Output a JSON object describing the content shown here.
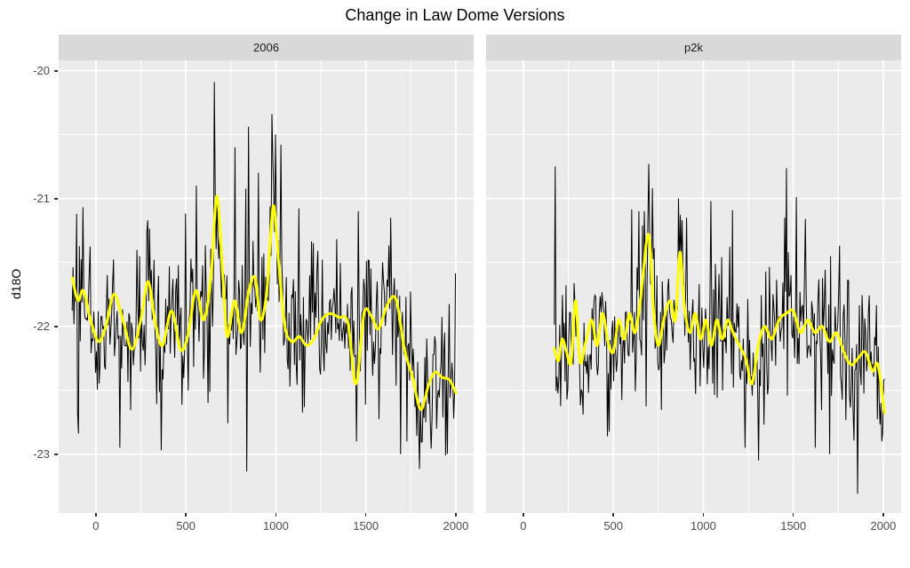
{
  "chart_data": {
    "type": "line",
    "title": "Change in Law Dome Versions",
    "ylabel": "d18O",
    "xlabel": "",
    "legend": "none",
    "grid": true,
    "facet_labels": [
      "2006",
      "p2k"
    ],
    "x_ticks": [
      0,
      500,
      1000,
      1500,
      2000
    ],
    "y_ticks": [
      -20,
      -21,
      -22,
      -23
    ],
    "xlim": [
      -207,
      2099
    ],
    "ylim": [
      -23.46,
      -19.92
    ],
    "colors": {
      "panel_bg": "#EBEBEB",
      "strip_bg": "#D9D9D9",
      "strip_text": "#1A1A1A",
      "grid": "#FFFFFF",
      "axis_text": "#4D4D4D",
      "tick_mark": "#333333",
      "annual_line": "#000000",
      "smooth_line": "#FFFF00",
      "title_text": "#000000"
    },
    "facets": [
      {
        "label": "2006",
        "annual": {
          "name": "annual d18O",
          "color": "#000000",
          "start": -132,
          "end": 2000,
          "step": 5,
          "noise_sd": 0.27,
          "seed": 42,
          "extremes": [
            [
              -105,
              -21.12
            ],
            [
              135,
              -22.95
            ],
            [
              365,
              -22.97
            ],
            [
              560,
              -20.9
            ],
            [
              660,
              -20.09
            ],
            [
              775,
              -20.6
            ],
            [
              847,
              -20.44
            ],
            [
              905,
              -20.8
            ],
            [
              980,
              -20.34
            ],
            [
              1000,
              -20.5
            ],
            [
              1030,
              -20.58
            ],
            [
              1210,
              -21.35
            ],
            [
              1450,
              -22.9
            ],
            [
              1460,
              -21.1
            ],
            [
              1640,
              -21.15
            ],
            [
              1692,
              -23.0
            ],
            [
              1730,
              -22.9
            ],
            [
              1943,
              -23.01
            ]
          ]
        },
        "smooth": {
          "name": "smoothed d18O",
          "color": "#FFFF00",
          "points": [
            [
              -132,
              -21.62
            ],
            [
              -100,
              -21.8
            ],
            [
              -70,
              -21.72
            ],
            [
              -30,
              -21.95
            ],
            [
              15,
              -22.12
            ],
            [
              55,
              -22.0
            ],
            [
              100,
              -21.75
            ],
            [
              150,
              -21.95
            ],
            [
              200,
              -22.18
            ],
            [
              250,
              -21.95
            ],
            [
              290,
              -21.65
            ],
            [
              330,
              -21.98
            ],
            [
              370,
              -22.15
            ],
            [
              420,
              -21.88
            ],
            [
              470,
              -22.18
            ],
            [
              510,
              -22.08
            ],
            [
              555,
              -21.72
            ],
            [
              600,
              -21.95
            ],
            [
              640,
              -21.6
            ],
            [
              672,
              -20.98
            ],
            [
              705,
              -21.6
            ],
            [
              730,
              -22.08
            ],
            [
              770,
              -21.8
            ],
            [
              810,
              -22.05
            ],
            [
              850,
              -21.72
            ],
            [
              885,
              -21.62
            ],
            [
              915,
              -21.95
            ],
            [
              950,
              -21.72
            ],
            [
              985,
              -21.06
            ],
            [
              1015,
              -21.5
            ],
            [
              1050,
              -22.0
            ],
            [
              1090,
              -22.12
            ],
            [
              1130,
              -22.08
            ],
            [
              1170,
              -22.15
            ],
            [
              1210,
              -22.1
            ],
            [
              1255,
              -21.95
            ],
            [
              1300,
              -21.9
            ],
            [
              1350,
              -21.93
            ],
            [
              1400,
              -21.97
            ],
            [
              1445,
              -22.45
            ],
            [
              1490,
              -21.9
            ],
            [
              1530,
              -21.92
            ],
            [
              1570,
              -22.02
            ],
            [
              1620,
              -21.83
            ],
            [
              1668,
              -21.79
            ],
            [
              1715,
              -22.18
            ],
            [
              1760,
              -22.4
            ],
            [
              1805,
              -22.65
            ],
            [
              1850,
              -22.45
            ],
            [
              1885,
              -22.36
            ],
            [
              1925,
              -22.4
            ],
            [
              1965,
              -22.42
            ],
            [
              2000,
              -22.52
            ]
          ]
        }
      },
      {
        "label": "p2k",
        "annual": {
          "name": "annual d18O",
          "color": "#000000",
          "start": 172,
          "end": 2007,
          "step": 5,
          "noise_sd": 0.27,
          "seed": 1337,
          "extremes": [
            [
              178,
              -20.75
            ],
            [
              640,
              -21.1
            ],
            [
              695,
              -20.73
            ],
            [
              718,
              -20.92
            ],
            [
              860,
              -21.0
            ],
            [
              905,
              -21.15
            ],
            [
              1040,
              -21.02
            ],
            [
              1230,
              -22.95
            ],
            [
              1305,
              -23.05
            ],
            [
              1450,
              -21.15
            ],
            [
              1515,
              -20.99
            ],
            [
              1620,
              -22.95
            ],
            [
              1700,
              -23.0
            ],
            [
              1757,
              -21.37
            ],
            [
              1857,
              -23.31
            ],
            [
              1992,
              -22.9
            ]
          ]
        },
        "smooth": {
          "name": "smoothed d18O",
          "color": "#FFFF00",
          "points": [
            [
              172,
              -22.17
            ],
            [
              195,
              -22.27
            ],
            [
              215,
              -22.1
            ],
            [
              240,
              -22.2
            ],
            [
              265,
              -22.28
            ],
            [
              290,
              -21.8
            ],
            [
              315,
              -22.28
            ],
            [
              350,
              -22.1
            ],
            [
              380,
              -21.95
            ],
            [
              410,
              -22.15
            ],
            [
              440,
              -21.9
            ],
            [
              470,
              -22.12
            ],
            [
              500,
              -22.2
            ],
            [
              530,
              -21.95
            ],
            [
              560,
              -22.1
            ],
            [
              590,
              -21.9
            ],
            [
              620,
              -22.05
            ],
            [
              650,
              -21.8
            ],
            [
              695,
              -21.28
            ],
            [
              725,
              -21.9
            ],
            [
              750,
              -22.15
            ],
            [
              780,
              -21.95
            ],
            [
              815,
              -21.8
            ],
            [
              845,
              -21.95
            ],
            [
              870,
              -21.42
            ],
            [
              895,
              -21.85
            ],
            [
              925,
              -22.05
            ],
            [
              955,
              -21.9
            ],
            [
              985,
              -22.1
            ],
            [
              1015,
              -21.95
            ],
            [
              1045,
              -22.15
            ],
            [
              1075,
              -21.95
            ],
            [
              1105,
              -22.1
            ],
            [
              1135,
              -21.95
            ],
            [
              1165,
              -22.05
            ],
            [
              1200,
              -22.15
            ],
            [
              1235,
              -22.25
            ],
            [
              1270,
              -22.45
            ],
            [
              1305,
              -22.15
            ],
            [
              1340,
              -22.0
            ],
            [
              1380,
              -22.1
            ],
            [
              1420,
              -21.95
            ],
            [
              1460,
              -21.9
            ],
            [
              1500,
              -21.88
            ],
            [
              1540,
              -22.05
            ],
            [
              1580,
              -21.95
            ],
            [
              1620,
              -22.05
            ],
            [
              1660,
              -22.0
            ],
            [
              1700,
              -22.12
            ],
            [
              1740,
              -22.05
            ],
            [
              1780,
              -22.2
            ],
            [
              1820,
              -22.3
            ],
            [
              1860,
              -22.25
            ],
            [
              1900,
              -22.2
            ],
            [
              1940,
              -22.35
            ],
            [
              1970,
              -22.3
            ],
            [
              2007,
              -22.68
            ]
          ]
        }
      }
    ]
  }
}
